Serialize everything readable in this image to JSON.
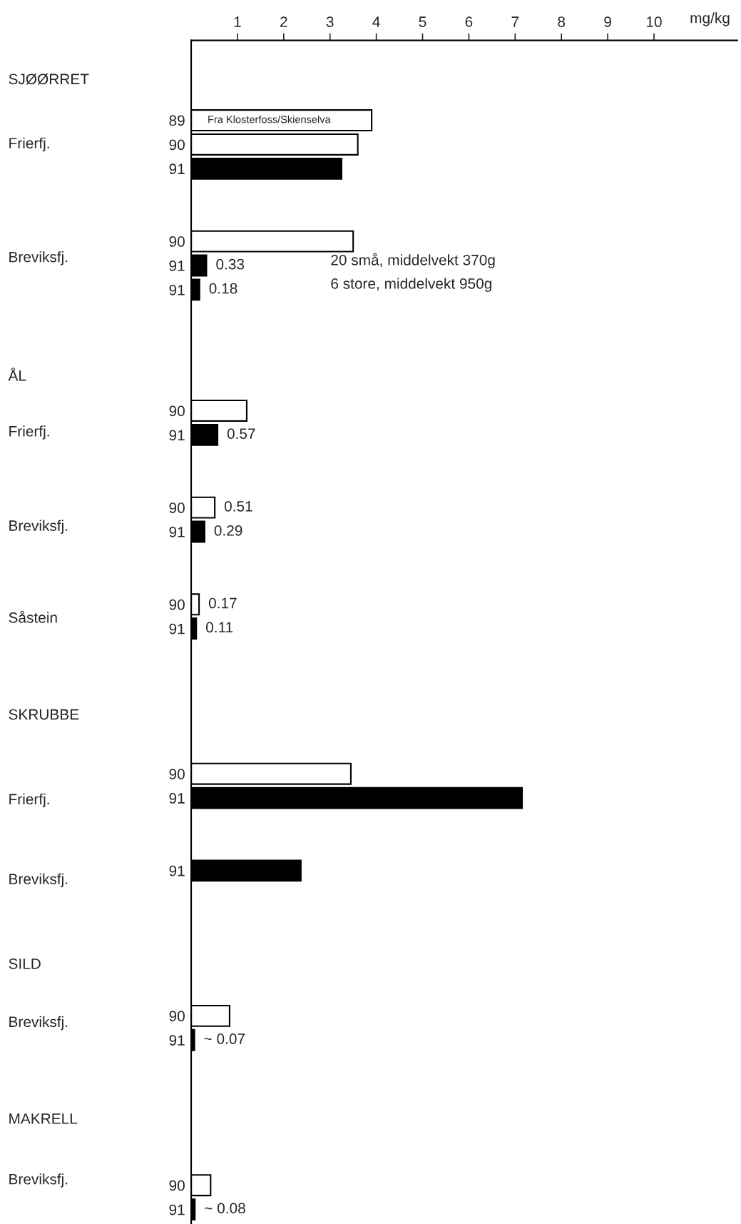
{
  "chart_data": {
    "type": "bar",
    "orientation": "horizontal",
    "xlabel": "mg/kg",
    "categories": [
      null,
      null,
      "89",
      "90",
      "91",
      null,
      null,
      "90",
      "91",
      "91",
      null,
      null,
      null,
      null,
      "90",
      "91",
      null,
      null,
      "90",
      "91",
      null,
      null,
      "90",
      "91",
      null,
      null,
      null,
      null,
      null,
      "90",
      "91",
      null,
      null,
      "91",
      null,
      null,
      null,
      null,
      null,
      "90",
      "91",
      null,
      null,
      null,
      null,
      null,
      "90",
      "91"
    ],
    "values": [
      null,
      null,
      3.9,
      3.6,
      3.25,
      null,
      null,
      3.5,
      0.33,
      0.18,
      null,
      null,
      null,
      null,
      1.2,
      0.57,
      null,
      null,
      0.51,
      0.29,
      null,
      null,
      0.17,
      0.11,
      null,
      null,
      null,
      null,
      null,
      3.45,
      7.15,
      null,
      null,
      2.37,
      null,
      null,
      null,
      null,
      null,
      0.83,
      0.07,
      null,
      null,
      null,
      null,
      null,
      0.42,
      0.08
    ],
    "colors": [
      null,
      null,
      "#ffffff",
      "#ffffff",
      "#000000",
      null,
      null,
      "#ffffff",
      "#000000",
      "#000000",
      null,
      null,
      null,
      null,
      "#ffffff",
      "#000000",
      null,
      null,
      "#ffffff",
      "#000000",
      null,
      null,
      "#ffffff",
      "#000000",
      null,
      null,
      null,
      null,
      null,
      "#ffffff",
      "#000000",
      null,
      null,
      "#000000",
      null,
      null,
      null,
      null,
      null,
      "#ffffff",
      "#000000",
      null,
      null,
      null,
      null,
      null,
      "#ffffff",
      "#000000"
    ],
    "value_labels": [
      null,
      null,
      null,
      null,
      null,
      null,
      null,
      null,
      "0.33",
      "0.18",
      null,
      null,
      null,
      null,
      null,
      "0.57",
      null,
      null,
      "0.51",
      "0.29",
      null,
      null,
      "0.17",
      "0.11",
      null,
      null,
      null,
      null,
      null,
      null,
      null,
      null,
      null,
      null,
      null,
      null,
      null,
      null,
      null,
      null,
      "~ 0.07",
      null,
      null,
      null,
      null,
      null,
      null,
      "~ 0.08"
    ],
    "xlim": [
      0,
      11.8
    ],
    "xticks": [
      1,
      2,
      3,
      4,
      5,
      6,
      7,
      8,
      9,
      10
    ],
    "grid": false,
    "annotations": [
      "SJØØRRET",
      "Frierfj.",
      "Breviksfj.",
      "ÅL",
      "Frierfj.",
      "Breviksfj.",
      "Såstein",
      "SKRUBBE",
      "Frierfj.",
      "Breviksfj.",
      "SILD",
      "Breviksfj.",
      "MAKRELL",
      "Breviksfj.",
      "20 små, middelvekt 370g",
      "6 store, middelvekt 950g",
      "Fra Klosterfoss/Skienselva"
    ]
  }
}
